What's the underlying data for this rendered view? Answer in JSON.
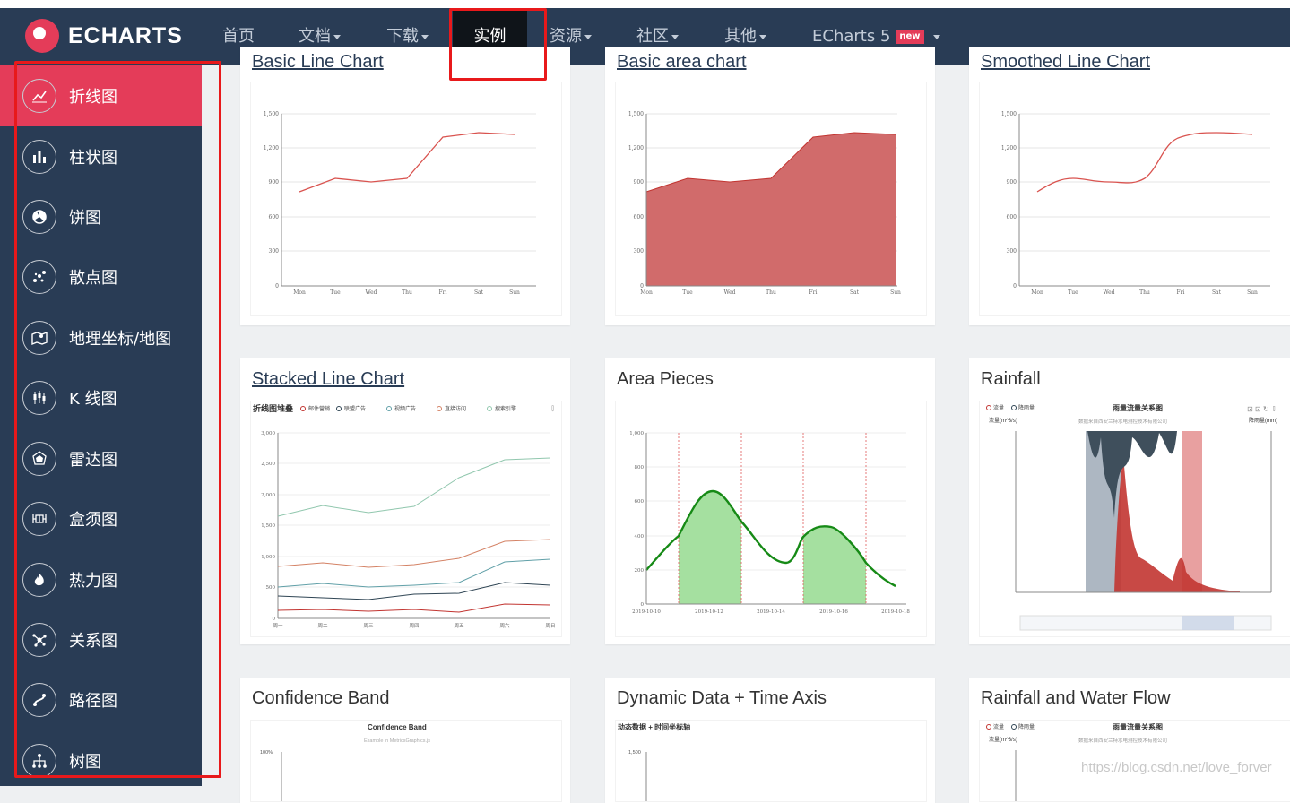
{
  "app": {
    "logo_text": "ECHARTS",
    "brand_color": "#e43c59",
    "nav_bg": "#293c55"
  },
  "nav": {
    "items": [
      "首页",
      "文档",
      "下载",
      "实例",
      "资源",
      "社区",
      "其他"
    ],
    "version_label": "ECharts 5",
    "new_badge": "new",
    "active": "实例"
  },
  "sidebar": {
    "items": [
      {
        "label": "折线图",
        "icon": "line-chart-icon"
      },
      {
        "label": "柱状图",
        "icon": "bar-chart-icon"
      },
      {
        "label": "饼图",
        "icon": "pie-chart-icon"
      },
      {
        "label": "散点图",
        "icon": "scatter-chart-icon"
      },
      {
        "label": "地理坐标/地图",
        "icon": "map-icon"
      },
      {
        "label": "K 线图",
        "icon": "candlestick-icon"
      },
      {
        "label": "雷达图",
        "icon": "radar-icon"
      },
      {
        "label": "盒须图",
        "icon": "boxplot-icon"
      },
      {
        "label": "热力图",
        "icon": "heatmap-icon"
      },
      {
        "label": "关系图",
        "icon": "graph-icon"
      },
      {
        "label": "路径图",
        "icon": "path-icon"
      },
      {
        "label": "树图",
        "icon": "tree-icon"
      }
    ]
  },
  "cards": {
    "row1": [
      "Basic Line Chart",
      "Basic area chart",
      "Smoothed Line Chart"
    ],
    "row2": [
      "Stacked Line Chart",
      "Area Pieces",
      "Rainfall"
    ],
    "row3": [
      "Confidence Band",
      "Dynamic Data + Time Axis",
      "Rainfall and Water Flow"
    ]
  },
  "charts": {
    "basic_days": [
      "Mon",
      "Tue",
      "Wed",
      "Thu",
      "Fri",
      "Sat",
      "Sun"
    ],
    "basic_values": [
      820,
      932,
      901,
      934,
      1290,
      1330,
      1320
    ],
    "basic_yticks": [
      "0",
      "300",
      "600",
      "900",
      "1,200",
      "1,500"
    ],
    "stacked_title": "折线图堆叠",
    "stacked_legend": [
      "邮件营销",
      "联盟广告",
      "视频广告",
      "直接访问",
      "搜索引擎"
    ],
    "stacked_days": [
      "周一",
      "周二",
      "周三",
      "周四",
      "周五",
      "周六",
      "周日"
    ],
    "stacked_yticks": [
      "0",
      "500",
      "1,000",
      "1,500",
      "2,000",
      "2,500",
      "3,000"
    ],
    "area_pieces_yticks": [
      "0",
      "200",
      "400",
      "600",
      "800",
      "1,000"
    ],
    "area_pieces_dates": [
      "2019-10-10",
      "2019-10-12",
      "2019-10-14",
      "2019-10-16",
      "2019-10-18"
    ],
    "rainfall_legend": [
      "流量",
      "降雨量"
    ],
    "rainfall_title": "雨量流量关系图",
    "rainfall_subtitle": "数据来自西安兰特水电测控技术有限公司",
    "rainfall_left_axis": "流量(m^3/s)",
    "rainfall_right_axis": "降雨量(mm)",
    "confidence_title": "Confidence Band",
    "confidence_subtitle": "Example in MetricsGraphics.js",
    "confidence_ytick": "100%",
    "dynamic_title": "动态数据 + 时间坐标轴",
    "dynamic_ytick": "1,500"
  },
  "watermark": "https://blog.csdn.net/love_forver"
}
